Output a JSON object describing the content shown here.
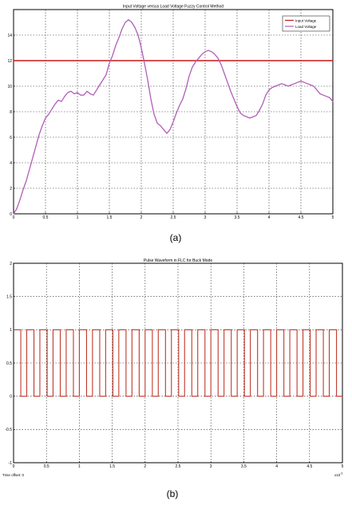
{
  "colors": {
    "input_voltage": "#c71818",
    "load_voltage": "#b25db8",
    "pulse": "#c0392b",
    "frame": "#000000",
    "grid": "#2a2a2a",
    "background": "#ffffff"
  },
  "chart_data": [
    {
      "type": "line",
      "caption": "(a)",
      "title": "Input Voltage versus Load Voltage Fuzzy Control Method",
      "xlabel": "",
      "ylabel": "",
      "xlim": [
        0,
        5
      ],
      "ylim": [
        0,
        16
      ],
      "xticks": [
        0,
        0.5,
        1,
        1.5,
        2,
        2.5,
        3,
        3.5,
        4,
        4.5,
        5
      ],
      "xtick_labels": [
        "0",
        "0.5",
        "1",
        "1.5",
        "2",
        "2.5",
        "3",
        "3.5",
        "4",
        "4.5",
        "5"
      ],
      "yticks": [
        0,
        2,
        4,
        6,
        8,
        10,
        12,
        14,
        16
      ],
      "ytick_labels": [
        "0",
        "2",
        "4",
        "6",
        "8",
        "10",
        "12",
        "14",
        ""
      ],
      "grid": true,
      "legend_position": "top-right",
      "series": [
        {
          "name": "Input Voltage",
          "color": "#c71818",
          "x": [
            0,
            5
          ],
          "y": [
            12,
            12
          ]
        },
        {
          "name": "Load Voltage",
          "color": "#b25db8",
          "x": [
            0,
            0.05,
            0.1,
            0.15,
            0.2,
            0.25,
            0.3,
            0.35,
            0.4,
            0.45,
            0.5,
            0.55,
            0.6,
            0.65,
            0.7,
            0.75,
            0.8,
            0.85,
            0.9,
            0.95,
            1.0,
            1.05,
            1.1,
            1.15,
            1.2,
            1.25,
            1.3,
            1.35,
            1.4,
            1.45,
            1.5,
            1.55,
            1.6,
            1.65,
            1.7,
            1.75,
            1.8,
            1.85,
            1.9,
            1.95,
            2.0,
            2.05,
            2.1,
            2.15,
            2.2,
            2.25,
            2.3,
            2.35,
            2.4,
            2.45,
            2.5,
            2.55,
            2.6,
            2.65,
            2.7,
            2.75,
            2.8,
            2.85,
            2.9,
            2.95,
            3.0,
            3.05,
            3.1,
            3.15,
            3.2,
            3.25,
            3.3,
            3.35,
            3.4,
            3.45,
            3.5,
            3.55,
            3.6,
            3.65,
            3.7,
            3.75,
            3.8,
            3.85,
            3.9,
            3.95,
            4.0,
            4.05,
            4.1,
            4.15,
            4.2,
            4.25,
            4.3,
            4.35,
            4.4,
            4.45,
            4.5,
            4.55,
            4.6,
            4.65,
            4.7,
            4.75,
            4.8,
            4.85,
            4.9,
            4.95,
            5.0
          ],
          "y": [
            0,
            0.4,
            1.1,
            1.9,
            2.6,
            3.5,
            4.4,
            5.3,
            6.2,
            6.9,
            7.5,
            7.8,
            8.2,
            8.6,
            8.9,
            8.8,
            9.2,
            9.5,
            9.6,
            9.4,
            9.5,
            9.3,
            9.3,
            9.6,
            9.4,
            9.3,
            9.7,
            10.1,
            10.5,
            10.9,
            11.8,
            12.4,
            13.2,
            13.8,
            14.5,
            15.0,
            15.2,
            15.0,
            14.6,
            14.0,
            13.0,
            11.8,
            10.5,
            9.0,
            7.8,
            7.1,
            6.9,
            6.6,
            6.3,
            6.6,
            7.2,
            7.9,
            8.5,
            9.0,
            9.8,
            10.8,
            11.5,
            11.9,
            12.2,
            12.5,
            12.7,
            12.8,
            12.7,
            12.5,
            12.2,
            11.7,
            11.0,
            10.3,
            9.6,
            9.0,
            8.4,
            7.9,
            7.7,
            7.6,
            7.5,
            7.6,
            7.7,
            8.1,
            8.6,
            9.3,
            9.7,
            9.9,
            10.0,
            10.1,
            10.2,
            10.1,
            10.0,
            10.1,
            10.2,
            10.3,
            10.4,
            10.3,
            10.2,
            10.1,
            10.0,
            9.7,
            9.4,
            9.3,
            9.2,
            9.1,
            8.8
          ]
        }
      ]
    },
    {
      "type": "line",
      "caption": "(b)",
      "title": "Pulse Waveform in FLC for Buck Mode",
      "xlabel": "",
      "ylabel": "",
      "xlim": [
        0,
        5
      ],
      "ylim": [
        -1,
        2
      ],
      "xticks": [
        0,
        0.5,
        1,
        1.5,
        2,
        2.5,
        3,
        3.5,
        4,
        4.5,
        5
      ],
      "xtick_labels": [
        "0",
        "0.5",
        "1",
        "1.5",
        "2",
        "2.5",
        "3",
        "3.5",
        "4",
        "4.5",
        "5"
      ],
      "yticks": [
        -1,
        -0.5,
        0,
        0.5,
        1,
        1.5,
        2
      ],
      "ytick_labels": [
        "-1",
        "-0.5",
        "0",
        "0.5",
        "1",
        "1.5",
        "2"
      ],
      "x_multiplier": "x10",
      "x_multiplier_exp": "-3",
      "time_offset": "Time offset:  0",
      "grid": true,
      "series": [
        {
          "name": "",
          "color": "#c0392b",
          "signal": "square",
          "period": 0.2,
          "duty": 0.55,
          "low": 0,
          "high": 1,
          "start": 0
        }
      ]
    }
  ]
}
